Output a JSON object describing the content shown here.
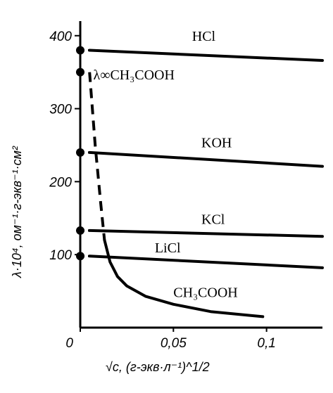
{
  "chart_data": {
    "type": "line",
    "title": "",
    "xlabel": "√c, (г-экв·л⁻¹)^1/2",
    "ylabel": "λ·10⁴, ом⁻¹·г-экв⁻¹·см²",
    "xlim": [
      0,
      0.13
    ],
    "ylim": [
      0,
      420
    ],
    "x_ticks": [
      {
        "value": 0,
        "label": "0"
      },
      {
        "value": 0.05,
        "label": "0,05"
      },
      {
        "value": 0.1,
        "label": "0,1"
      }
    ],
    "y_ticks": [
      {
        "value": 100,
        "label": "100"
      },
      {
        "value": 200,
        "label": "200"
      },
      {
        "value": 300,
        "label": "300"
      },
      {
        "value": 400,
        "label": "400"
      }
    ],
    "grid": false,
    "legend": "none",
    "series": [
      {
        "name": "HCl",
        "x": [
          0.005,
          0.13
        ],
        "y": [
          380,
          366
        ],
        "dashed_to_axis": true
      },
      {
        "name": "KOH",
        "x": [
          0.005,
          0.13
        ],
        "y": [
          240,
          221
        ],
        "dashed_to_axis": true
      },
      {
        "name": "KCl",
        "x": [
          0.005,
          0.13
        ],
        "y": [
          133,
          125
        ],
        "dashed_to_axis": true
      },
      {
        "name": "LiCl",
        "x": [
          0.005,
          0.13
        ],
        "y": [
          98,
          82
        ],
        "dashed_to_axis": true
      },
      {
        "name": "CH₃COOH",
        "x": [
          0.005,
          0.008,
          0.011,
          0.013,
          0.016,
          0.02,
          0.025,
          0.035,
          0.05,
          0.07,
          0.09,
          0.098
        ],
        "y": [
          350,
          250,
          170,
          120,
          90,
          70,
          57,
          43,
          32,
          22,
          17,
          15
        ],
        "dashed_segment_x": [
          0.005,
          0.012
        ]
      }
    ],
    "axis_points": [
      {
        "name": "HCl",
        "y": 380
      },
      {
        "name": "λ∞ CH₃COOH",
        "y": 350
      },
      {
        "name": "KOH",
        "y": 240
      },
      {
        "name": "KCl",
        "y": 133
      },
      {
        "name": "LiCl",
        "y": 98
      }
    ],
    "annotations": [
      {
        "text": "HCl",
        "x": 0.06,
        "y": 393
      },
      {
        "text": "λ∞CH₃COOH",
        "x": 0.007,
        "y": 340
      },
      {
        "text": "KOH",
        "x": 0.065,
        "y": 247
      },
      {
        "text": "KCl",
        "x": 0.065,
        "y": 142
      },
      {
        "text": "LiCl",
        "x": 0.04,
        "y": 103
      },
      {
        "text": "CH₃COOH",
        "x": 0.05,
        "y": 42
      }
    ]
  }
}
